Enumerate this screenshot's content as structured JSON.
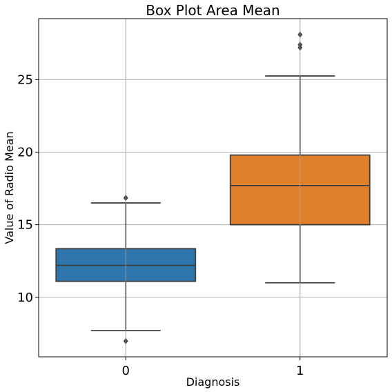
{
  "chart_data": {
    "type": "box",
    "title": "Box Plot Area Mean",
    "xlabel": "Diagnosis",
    "ylabel": "Value of Radio Mean",
    "categories": [
      "0",
      "1"
    ],
    "ylim": [
      5.9,
      29.2
    ],
    "yticks": [
      10,
      15,
      20,
      25
    ],
    "grid": true,
    "colors": [
      "#2e75ab",
      "#e07f2c"
    ],
    "boxes": [
      {
        "category": "0",
        "whisker_low": 7.7,
        "q1": 11.1,
        "median": 12.2,
        "q3": 13.35,
        "whisker_high": 16.5,
        "outliers": [
          6.98,
          16.85
        ]
      },
      {
        "category": "1",
        "whisker_low": 11.0,
        "q1": 15.0,
        "median": 17.7,
        "q3": 19.8,
        "whisker_high": 25.25,
        "outliers": [
          27.2,
          27.4,
          28.1
        ]
      }
    ]
  }
}
